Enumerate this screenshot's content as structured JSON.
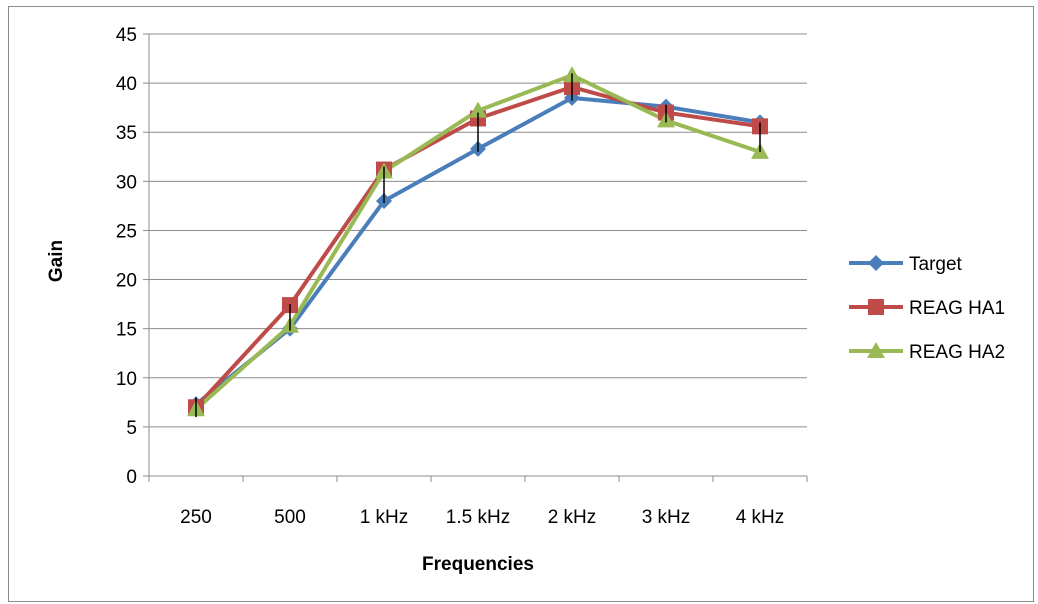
{
  "chart_data": {
    "type": "line",
    "title": "",
    "xlabel": "Frequencies",
    "ylabel": "Gain",
    "categories": [
      "250",
      "500",
      "1 kHz",
      "1.5 kHz",
      "2 kHz",
      "3 kHz",
      "4 kHz"
    ],
    "ylim": [
      0,
      45
    ],
    "yticks": [
      0,
      5,
      10,
      15,
      20,
      25,
      30,
      35,
      40,
      45
    ],
    "grid": true,
    "legend": "right",
    "series": [
      {
        "name": "Target",
        "marker": "diamond",
        "color": "#4a7ebb",
        "values": [
          7.3,
          15.0,
          28.0,
          33.3,
          38.5,
          37.6,
          36.0
        ]
      },
      {
        "name": "REAG HA1",
        "marker": "square",
        "color": "#be4b48",
        "values": [
          7.0,
          17.4,
          31.2,
          36.4,
          39.6,
          37.0,
          35.6
        ]
      },
      {
        "name": "REAG HA2",
        "marker": "triangle",
        "color": "#98b954",
        "values": [
          6.8,
          15.3,
          31.0,
          37.2,
          40.8,
          36.2,
          33.0
        ]
      }
    ],
    "error_bars": [
      {
        "category": "250",
        "low": 6.0,
        "high": 8.0
      },
      {
        "category": "500",
        "low": 14.8,
        "high": 17.5
      },
      {
        "category": "1 kHz",
        "low": 27.8,
        "high": 31.5
      },
      {
        "category": "1.5 kHz",
        "low": 33.0,
        "high": 37.0
      },
      {
        "category": "2 kHz",
        "low": 38.2,
        "high": 41.0
      },
      {
        "category": "3 kHz",
        "low": 36.0,
        "high": 37.8
      },
      {
        "category": "4 kHz",
        "low": 33.0,
        "high": 36.0
      }
    ]
  }
}
